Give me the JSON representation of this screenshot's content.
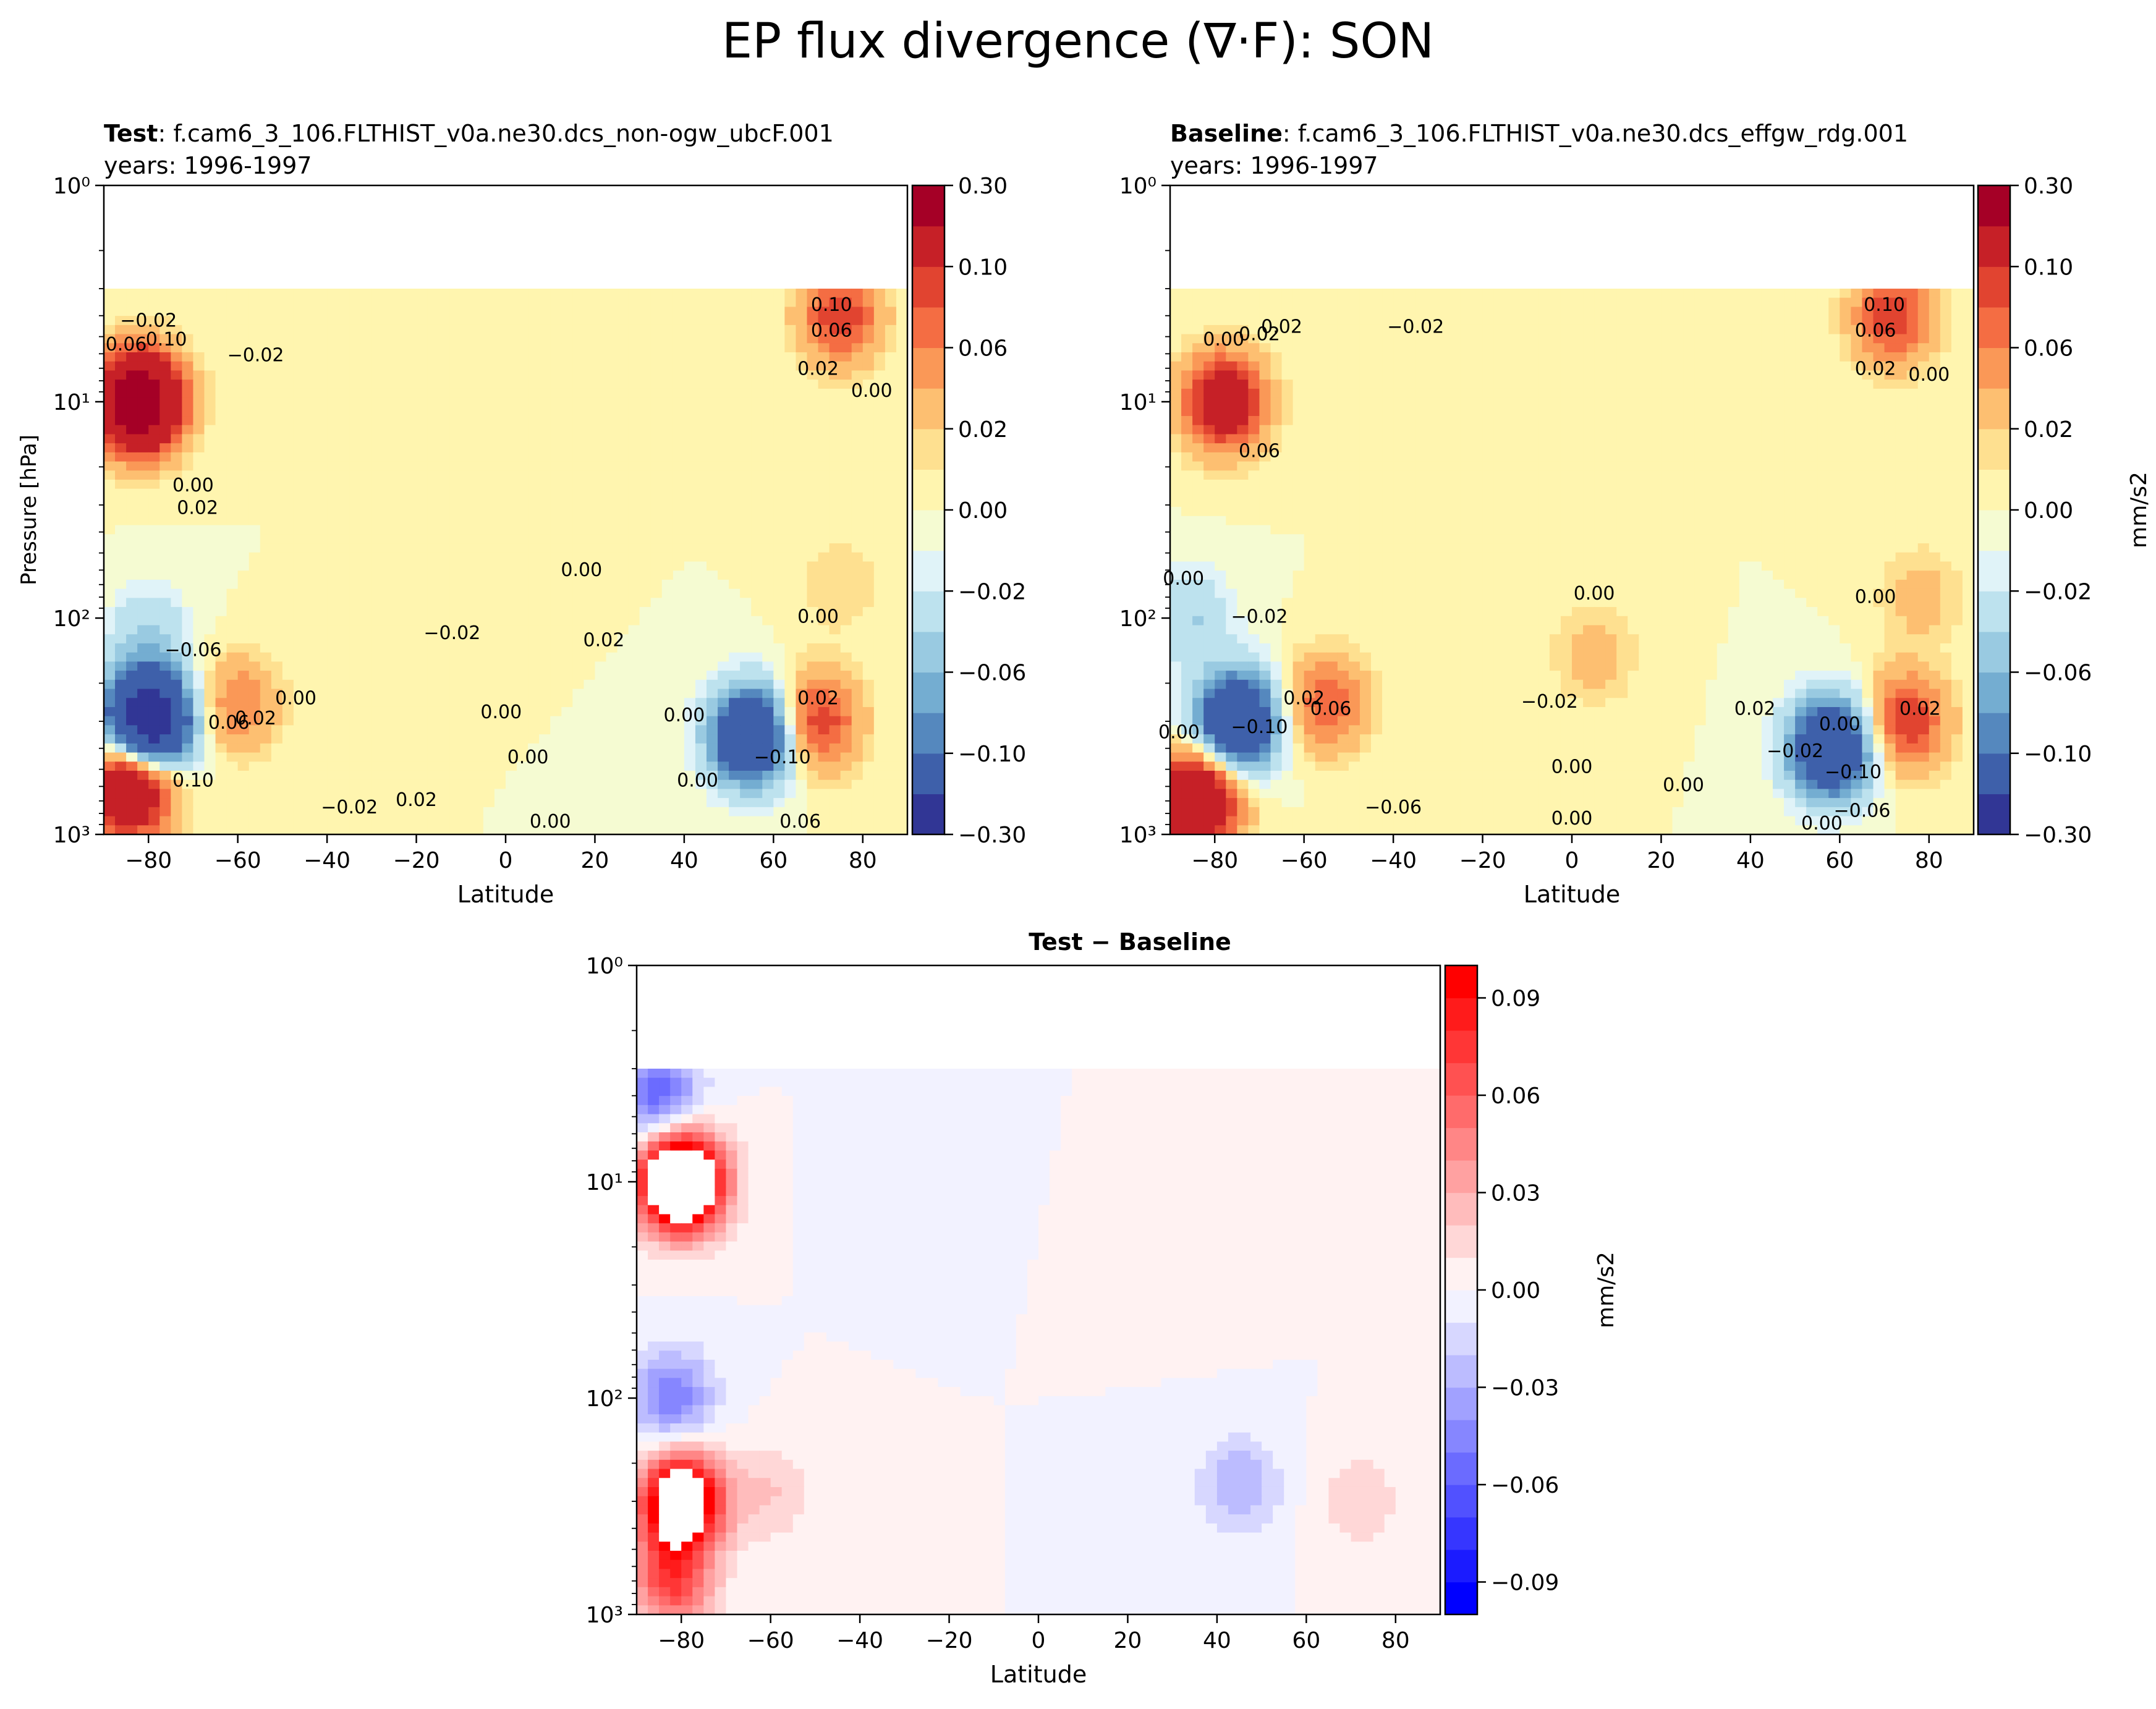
{
  "figure": {
    "suptitle": "EP flux divergence (∇·F): SON"
  },
  "panels": [
    {
      "id": "test",
      "title_bold": "Test",
      "title_rest": ": f.cam6_3_106.FLTHIST_v0a.ne30.dcs_non-ogw_ubcF.001",
      "subtitle": "years: 1996-1997",
      "xlabel": "Latitude",
      "ylabel": "Pressure [hPa]",
      "cbar_label": ""
    },
    {
      "id": "baseline",
      "title_bold": "Baseline",
      "title_rest": ": f.cam6_3_106.FLTHIST_v0a.ne30.dcs_effgw_rdg.001",
      "subtitle": "years: 1996-1997",
      "xlabel": "Latitude",
      "ylabel": "",
      "cbar_label": "mm/s2"
    },
    {
      "id": "diff",
      "title_bold": "Test − Baseline",
      "title_rest": "",
      "subtitle": "",
      "xlabel": "Latitude",
      "ylabel": "",
      "cbar_label": "mm/s2"
    }
  ],
  "colors": {
    "rdylbu": [
      "#313695",
      "#4575b4",
      "#74add1",
      "#abd9e9",
      "#e0f3f8",
      "#ffffbf",
      "#fee090",
      "#fdae61",
      "#f46d43",
      "#d73027",
      "#a50026"
    ],
    "bwr": [
      "#0000ff",
      "#ffffff",
      "#ff0000"
    ]
  },
  "chart_data": [
    {
      "type": "heatmap",
      "panel": "test",
      "x_ticks": [
        "−80",
        "−60",
        "−40",
        "−20",
        "0",
        "20",
        "40",
        "60",
        "80"
      ],
      "x_tick_values": [
        -80,
        -60,
        -40,
        -20,
        0,
        20,
        40,
        60,
        80
      ],
      "xlim": [
        -90,
        90
      ],
      "y_ticks": [
        "10⁰",
        "10¹",
        "10²",
        "10³"
      ],
      "y_tick_values": [
        1,
        10,
        100,
        1000
      ],
      "ylim": [
        1000,
        1
      ],
      "yscale": "log",
      "data_top_pressure": 3,
      "levels": [
        -0.3,
        -0.2,
        -0.1,
        -0.08,
        -0.06,
        -0.04,
        -0.02,
        -0.01,
        0.0,
        0.01,
        0.02,
        0.04,
        0.06,
        0.08,
        0.1,
        0.2,
        0.3
      ],
      "cbar_ticks": [
        "0.30",
        "0.10",
        "0.06",
        "0.02",
        "0.00",
        "−0.02",
        "−0.06",
        "−0.10",
        "−0.30"
      ],
      "cbar_tick_values": [
        0.3,
        0.1,
        0.06,
        0.02,
        0.0,
        -0.02,
        -0.06,
        -0.1,
        -0.3
      ],
      "features": [
        {
          "lat": -82,
          "p": 10,
          "value": 0.3
        },
        {
          "lat": -84,
          "p": 600,
          "value": 0.2
        },
        {
          "lat": -80,
          "p": 300,
          "value": -0.3
        },
        {
          "lat": -60,
          "p": 250,
          "value": 0.06
        },
        {
          "lat": 75,
          "p": 4,
          "value": 0.1
        },
        {
          "lat": 70,
          "p": 300,
          "value": 0.1
        },
        {
          "lat": 55,
          "p": 350,
          "value": -0.2
        },
        {
          "lat": -80,
          "p": 120,
          "value": -0.04
        },
        {
          "lat": 10,
          "p": 30,
          "value": 0.004
        },
        {
          "lat": 75,
          "p": 70,
          "value": 0.02
        }
      ],
      "contour_labels": [
        {
          "text": "−0.02",
          "lat": -80,
          "p": 4.5
        },
        {
          "text": "0.10",
          "lat": -76,
          "p": 5.5
        },
        {
          "text": "0.06",
          "lat": -85,
          "p": 5.8
        },
        {
          "text": "−0.02",
          "lat": -56,
          "p": 6.5
        },
        {
          "text": "0.10",
          "lat": 73,
          "p": 3.8
        },
        {
          "text": "0.06",
          "lat": 73,
          "p": 5
        },
        {
          "text": "0.02",
          "lat": 70,
          "p": 7.5
        },
        {
          "text": "0.00",
          "lat": 82,
          "p": 9.5
        },
        {
          "text": "0.00",
          "lat": -70,
          "p": 26
        },
        {
          "text": "0.02",
          "lat": -69,
          "p": 33
        },
        {
          "text": "0.00",
          "lat": 17,
          "p": 64
        },
        {
          "text": "−0.02",
          "lat": -12,
          "p": 125
        },
        {
          "text": "0.02",
          "lat": 22,
          "p": 135
        },
        {
          "text": "−0.06",
          "lat": -70,
          "p": 150
        },
        {
          "text": "0.00",
          "lat": 70,
          "p": 105
        },
        {
          "text": "0.00",
          "lat": -47,
          "p": 250
        },
        {
          "text": "0.02",
          "lat": -56,
          "p": 310
        },
        {
          "text": "0.06",
          "lat": -62,
          "p": 325
        },
        {
          "text": "0.00",
          "lat": -1,
          "p": 290
        },
        {
          "text": "0.00",
          "lat": 40,
          "p": 300
        },
        {
          "text": "0.02",
          "lat": 70,
          "p": 250
        },
        {
          "text": "−0.10",
          "lat": 62,
          "p": 470
        },
        {
          "text": "0.00",
          "lat": 5,
          "p": 470
        },
        {
          "text": "0.10",
          "lat": -70,
          "p": 600
        },
        {
          "text": "0.00",
          "lat": 43,
          "p": 600
        },
        {
          "text": "−0.02",
          "lat": -35,
          "p": 800
        },
        {
          "text": "0.02",
          "lat": -20,
          "p": 740
        },
        {
          "text": "0.00",
          "lat": 10,
          "p": 930
        },
        {
          "text": "0.06",
          "lat": 66,
          "p": 930
        }
      ]
    },
    {
      "type": "heatmap",
      "panel": "baseline",
      "x_ticks": [
        "−80",
        "−60",
        "−40",
        "−20",
        "0",
        "20",
        "40",
        "60",
        "80"
      ],
      "x_tick_values": [
        -80,
        -60,
        -40,
        -20,
        0,
        20,
        40,
        60,
        80
      ],
      "xlim": [
        -90,
        90
      ],
      "y_ticks": [
        "10⁰",
        "10¹",
        "10²",
        "10³"
      ],
      "y_tick_values": [
        1,
        10,
        100,
        1000
      ],
      "ylim": [
        1000,
        1
      ],
      "yscale": "log",
      "data_top_pressure": 3,
      "levels": [
        -0.3,
        -0.2,
        -0.1,
        -0.08,
        -0.06,
        -0.04,
        -0.02,
        -0.01,
        0.0,
        0.01,
        0.02,
        0.04,
        0.06,
        0.08,
        0.1,
        0.2,
        0.3
      ],
      "cbar_ticks": [
        "0.30",
        "0.10",
        "0.06",
        "0.02",
        "0.00",
        "−0.02",
        "−0.06",
        "−0.10",
        "−0.30"
      ],
      "cbar_tick_values": [
        0.3,
        0.1,
        0.06,
        0.02,
        0.0,
        -0.02,
        -0.06,
        -0.1,
        -0.3
      ],
      "features": [
        {
          "lat": -78,
          "p": 10,
          "value": 0.15
        },
        {
          "lat": -84,
          "p": 700,
          "value": 0.2
        },
        {
          "lat": -75,
          "p": 300,
          "value": -0.2
        },
        {
          "lat": -55,
          "p": 250,
          "value": 0.08
        },
        {
          "lat": 72,
          "p": 4,
          "value": 0.1
        },
        {
          "lat": 75,
          "p": 300,
          "value": 0.1
        },
        {
          "lat": 58,
          "p": 400,
          "value": -0.2
        },
        {
          "lat": -85,
          "p": 100,
          "value": -0.04
        },
        {
          "lat": 5,
          "p": 150,
          "value": 0.03
        },
        {
          "lat": 78,
          "p": 80,
          "value": 0.03
        }
      ],
      "contour_labels": [
        {
          "text": "0.00",
          "lat": -78,
          "p": 5.5
        },
        {
          "text": "0.02",
          "lat": -65,
          "p": 4.8
        },
        {
          "text": "−0.02",
          "lat": -35,
          "p": 4.8
        },
        {
          "text": "0.02",
          "lat": -70,
          "p": 5.2
        },
        {
          "text": "0.10",
          "lat": 70,
          "p": 3.8
        },
        {
          "text": "0.06",
          "lat": 68,
          "p": 5
        },
        {
          "text": "0.02",
          "lat": 68,
          "p": 7.5
        },
        {
          "text": "0.00",
          "lat": 80,
          "p": 8
        },
        {
          "text": "0.06",
          "lat": -70,
          "p": 18
        },
        {
          "text": "0.00",
          "lat": -87,
          "p": 70
        },
        {
          "text": "−0.02",
          "lat": -70,
          "p": 105
        },
        {
          "text": "0.00",
          "lat": 5,
          "p": 82
        },
        {
          "text": "0.00",
          "lat": 68,
          "p": 85
        },
        {
          "text": "0.02",
          "lat": -60,
          "p": 250
        },
        {
          "text": "0.06",
          "lat": -54,
          "p": 280
        },
        {
          "text": "−0.02",
          "lat": -5,
          "p": 260
        },
        {
          "text": "0.02",
          "lat": 41,
          "p": 280
        },
        {
          "text": "0.02",
          "lat": 78,
          "p": 280
        },
        {
          "text": "−0.10",
          "lat": -70,
          "p": 340
        },
        {
          "text": "0.00",
          "lat": 60,
          "p": 330
        },
        {
          "text": "0.00",
          "lat": -88,
          "p": 360
        },
        {
          "text": "−0.02",
          "lat": 50,
          "p": 440
        },
        {
          "text": "0.00",
          "lat": 0,
          "p": 520
        },
        {
          "text": "−0.10",
          "lat": 63,
          "p": 550
        },
        {
          "text": "0.00",
          "lat": 25,
          "p": 630
        },
        {
          "text": "−0.06",
          "lat": -40,
          "p": 800
        },
        {
          "text": "0.00",
          "lat": 0,
          "p": 900
        },
        {
          "text": "−0.06",
          "lat": 65,
          "p": 830
        },
        {
          "text": "0.00",
          "lat": 56,
          "p": 950
        }
      ]
    },
    {
      "type": "heatmap",
      "panel": "diff",
      "x_ticks": [
        "−80",
        "−60",
        "−40",
        "−20",
        "0",
        "20",
        "40",
        "60",
        "80"
      ],
      "x_tick_values": [
        -80,
        -60,
        -40,
        -20,
        0,
        20,
        40,
        60,
        80
      ],
      "xlim": [
        -90,
        90
      ],
      "y_ticks": [
        "10⁰",
        "10¹",
        "10²",
        "10³"
      ],
      "y_tick_values": [
        1,
        10,
        100,
        1000
      ],
      "ylim": [
        1000,
        1
      ],
      "yscale": "log",
      "data_top_pressure": 3,
      "levels": [
        -0.1,
        -0.09,
        -0.08,
        -0.07,
        -0.06,
        -0.05,
        -0.04,
        -0.03,
        -0.02,
        -0.01,
        0.0,
        0.01,
        0.02,
        0.03,
        0.04,
        0.05,
        0.06,
        0.07,
        0.08,
        0.09,
        0.1
      ],
      "cbar_ticks": [
        "0.09",
        "0.06",
        "0.03",
        "0.00",
        "−0.03",
        "−0.06",
        "−0.09"
      ],
      "cbar_tick_values": [
        0.09,
        0.06,
        0.03,
        0.0,
        -0.03,
        -0.06,
        -0.09
      ],
      "features": [
        {
          "lat": -80,
          "p": 10,
          "value": 0.2
        },
        {
          "lat": -85,
          "p": 4,
          "value": -0.06
        },
        {
          "lat": -80,
          "p": 300,
          "value": 0.15
        },
        {
          "lat": -82,
          "p": 100,
          "value": -0.05
        },
        {
          "lat": -82,
          "p": 700,
          "value": 0.07
        },
        {
          "lat": -60,
          "p": 280,
          "value": 0.02
        },
        {
          "lat": 45,
          "p": 250,
          "value": -0.03
        },
        {
          "lat": 72,
          "p": 300,
          "value": 0.02
        },
        {
          "lat": -40,
          "p": 10,
          "value": -0.003
        },
        {
          "lat": 40,
          "p": 30,
          "value": 0.003
        }
      ],
      "contour_labels": []
    }
  ]
}
